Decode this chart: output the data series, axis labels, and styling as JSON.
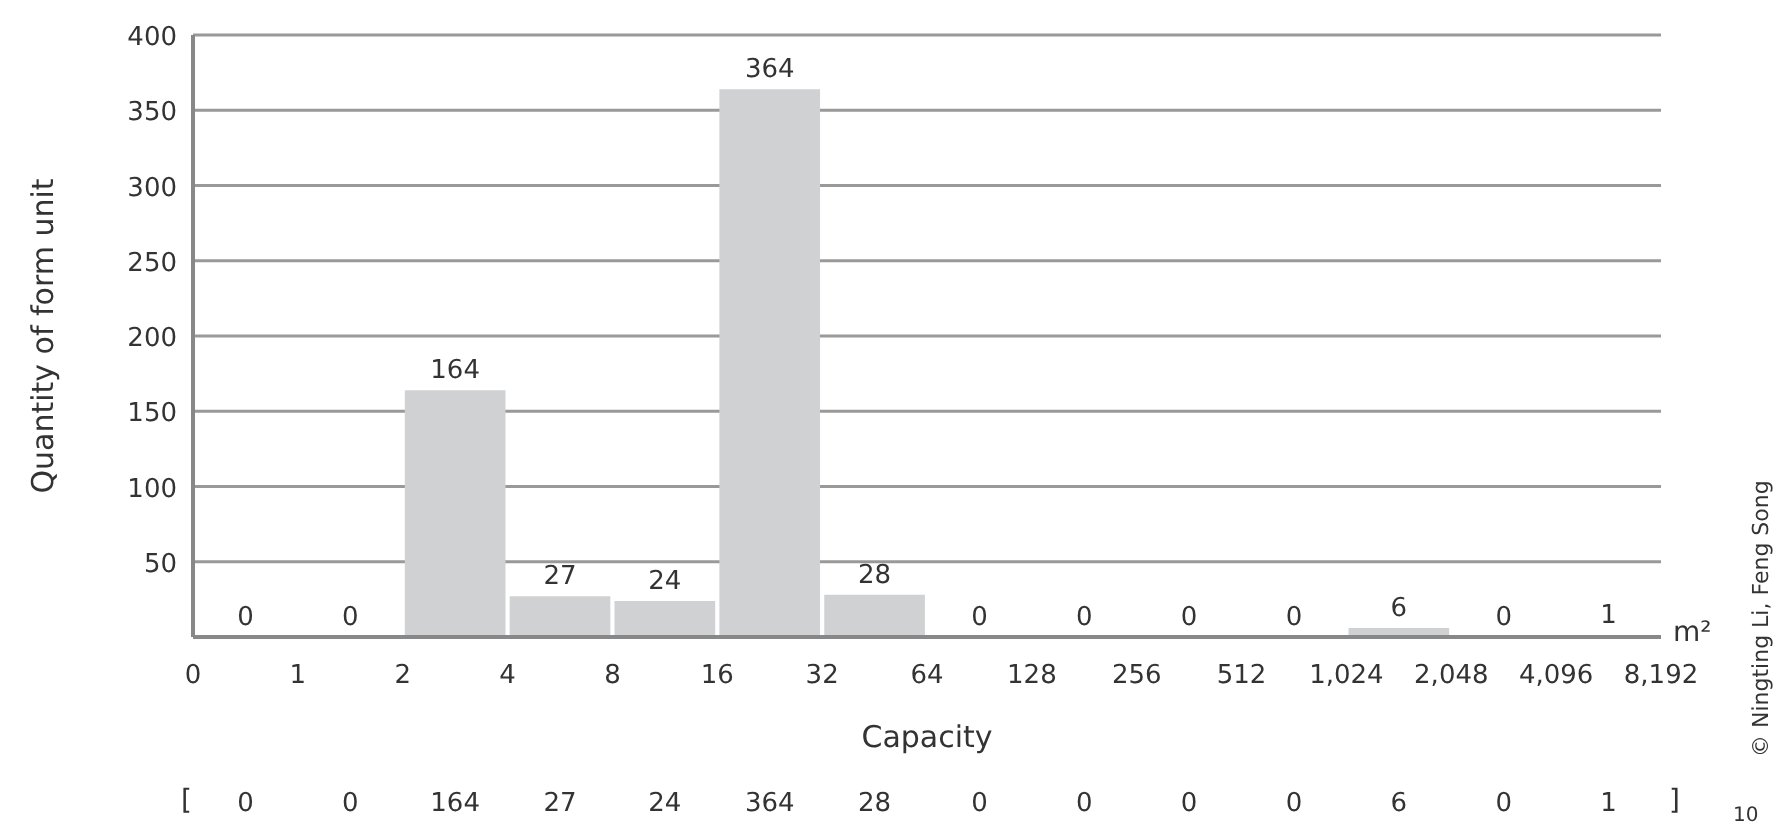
{
  "chart_data": {
    "type": "bar",
    "xlabel": "Capacity",
    "ylabel": "Quantity of form unit",
    "categories": [
      null,
      null,
      null,
      null,
      null,
      null,
      null,
      null,
      null,
      null,
      null,
      null,
      null,
      null
    ],
    "values": [
      0,
      0,
      164,
      27,
      24,
      364,
      28,
      0,
      0,
      0,
      0,
      6,
      0,
      1
    ],
    "color": "#d0d1d3",
    "ylim": [
      0,
      400
    ],
    "yticks": [
      50,
      100,
      150,
      200,
      250,
      300,
      350,
      400
    ],
    "grid": "y",
    "data_labels": true,
    "annotations": [
      "m²",
      "[",
      "]",
      "© Ningting Li, Feng Song",
      "10",
      "0",
      "1",
      "2",
      "4",
      "8",
      "16",
      "32",
      "64",
      "128",
      "256",
      "512",
      "1,024",
      "2,048",
      "4,096",
      "8,192",
      "0",
      "0",
      "164",
      "27",
      "24",
      "364",
      "28",
      "0",
      "0",
      "0",
      "0",
      "6",
      "0",
      "1"
    ]
  }
}
